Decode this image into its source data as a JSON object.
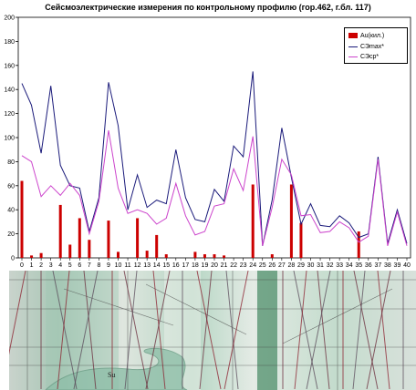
{
  "chart_data": {
    "type": "bar+line",
    "title": "Сейсмоэлектрические измерения по контрольному профилю (гор.462, г.бл. 117)",
    "xlabel": "",
    "ylabel": "",
    "ylim": [
      0,
      200
    ],
    "yticks": [
      "0",
      "20",
      "40",
      "60",
      "80",
      "100",
      "120",
      "140",
      "160",
      "180",
      "200"
    ],
    "categories": [
      "0",
      "1",
      "2",
      "3",
      "4",
      "5",
      "6",
      "7",
      "8",
      "9",
      "10",
      "11",
      "12",
      "13",
      "14",
      "15",
      "16",
      "17",
      "18",
      "19",
      "20",
      "21",
      "22",
      "23",
      "24",
      "25",
      "26",
      "27",
      "28",
      "29",
      "30",
      "31",
      "32",
      "33",
      "34",
      "35",
      "36",
      "37",
      "38",
      "39",
      "40"
    ],
    "legend_position": "top-right",
    "grid": false,
    "series": [
      {
        "name": "Au(кил.)",
        "kind": "bar",
        "color": "#cc0000",
        "values": [
          64,
          2,
          4,
          0,
          44,
          11,
          33,
          15,
          0,
          31,
          5,
          0,
          33,
          6,
          19,
          3,
          0,
          0,
          5,
          3,
          3,
          2,
          0,
          0,
          61,
          0,
          3,
          0,
          61,
          29,
          0,
          0,
          0,
          0,
          0,
          22,
          0,
          0,
          0,
          0,
          0
        ]
      },
      {
        "name": "СЭmax*",
        "kind": "line",
        "color": "#1a1a7a",
        "values": [
          145,
          127,
          87,
          143,
          77,
          60,
          58,
          22,
          50,
          146,
          110,
          40,
          69,
          42,
          48,
          45,
          90,
          50,
          32,
          30,
          57,
          47,
          93,
          84,
          155,
          10,
          48,
          108,
          67,
          28,
          45,
          27,
          26,
          35,
          29,
          17,
          20,
          84,
          12,
          40,
          12
        ]
      },
      {
        "name": "СЭср*",
        "kind": "line",
        "color": "#cc44cc",
        "values": [
          85,
          80,
          51,
          60,
          52,
          62,
          52,
          20,
          47,
          106,
          58,
          37,
          40,
          37,
          28,
          33,
          62,
          35,
          19,
          22,
          43,
          45,
          74,
          56,
          101,
          10,
          42,
          82,
          69,
          35,
          36,
          21,
          22,
          30,
          25,
          13,
          18,
          82,
          10,
          38,
          10
        ]
      }
    ]
  },
  "photo": {
    "label": "Su"
  }
}
